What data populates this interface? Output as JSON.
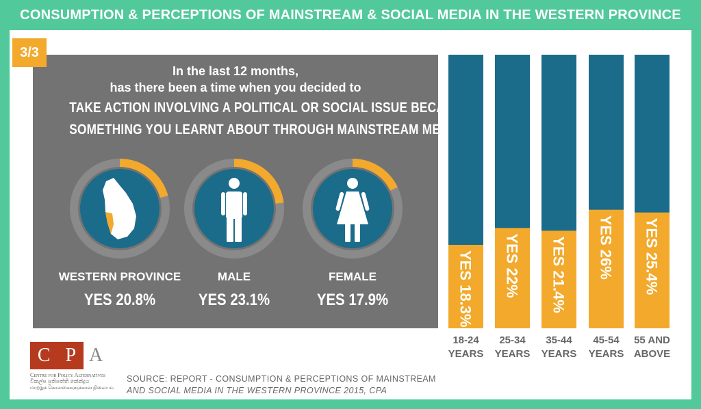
{
  "title": "CONSUMPTION & PERCEPTIONS OF MAINSTREAM & SOCIAL MEDIA IN THE WESTERN PROVINCE",
  "badge": "3/3",
  "question": {
    "line1": "In the last 12 months,",
    "line2": "has there been a time when you decided to",
    "line3": "TAKE ACTION INVOLVING A POLITICAL OR SOCIAL ISSUE BECAUSE OF",
    "line4": "SOMETHING YOU LEARNT ABOUT THROUGH MAINSTREAM MEDIA?"
  },
  "donuts": [
    {
      "label": "WESTERN PROVINCE",
      "value_text": "YES 20.8%",
      "value": 20.8,
      "icon": "sri-lanka-map-icon"
    },
    {
      "label": "MALE",
      "value_text": "YES 23.1%",
      "value": 23.1,
      "icon": "male-icon"
    },
    {
      "label": "FEMALE",
      "value_text": "YES 17.9%",
      "value": 17.9,
      "icon": "female-icon"
    }
  ],
  "colors": {
    "green": "#52c99b",
    "orange": "#f2a92c",
    "blue": "#1b6b8a",
    "grey": "#737373",
    "ring": "#8a8a8a"
  },
  "chart_data": {
    "type": "bar",
    "stacked": true,
    "ylim": [
      0,
      60
    ],
    "categories": [
      [
        "18-24",
        "YEARS"
      ],
      [
        "25-34",
        "YEARS"
      ],
      [
        "35-44",
        "YEARS"
      ],
      [
        "45-54",
        "YEARS"
      ],
      [
        "55 AND",
        "ABOVE"
      ]
    ],
    "values": [
      18.3,
      22,
      21.4,
      26,
      25.4
    ],
    "data_labels": [
      "YES 18.3%",
      "YES 22%",
      "YES 21.4%",
      "YES 26%",
      "YES 25.4%"
    ]
  },
  "logo": {
    "letters": [
      "C",
      "P",
      "A"
    ],
    "name": "Centre for Policy Alternatives",
    "sinhala": "විකල්ප ප්‍රතිපත්ති කේන්ද්‍රය",
    "tamil": "மாற்றுக் கொள்கைகளுக்கான நிலையம்"
  },
  "source": {
    "line1": "SOURCE: REPORT - CONSUMPTION & PERCEPTIONS OF MAINSTREAM",
    "line2": "AND SOCIAL MEDIA IN THE WESTERN PROVINCE 2015, CPA"
  }
}
